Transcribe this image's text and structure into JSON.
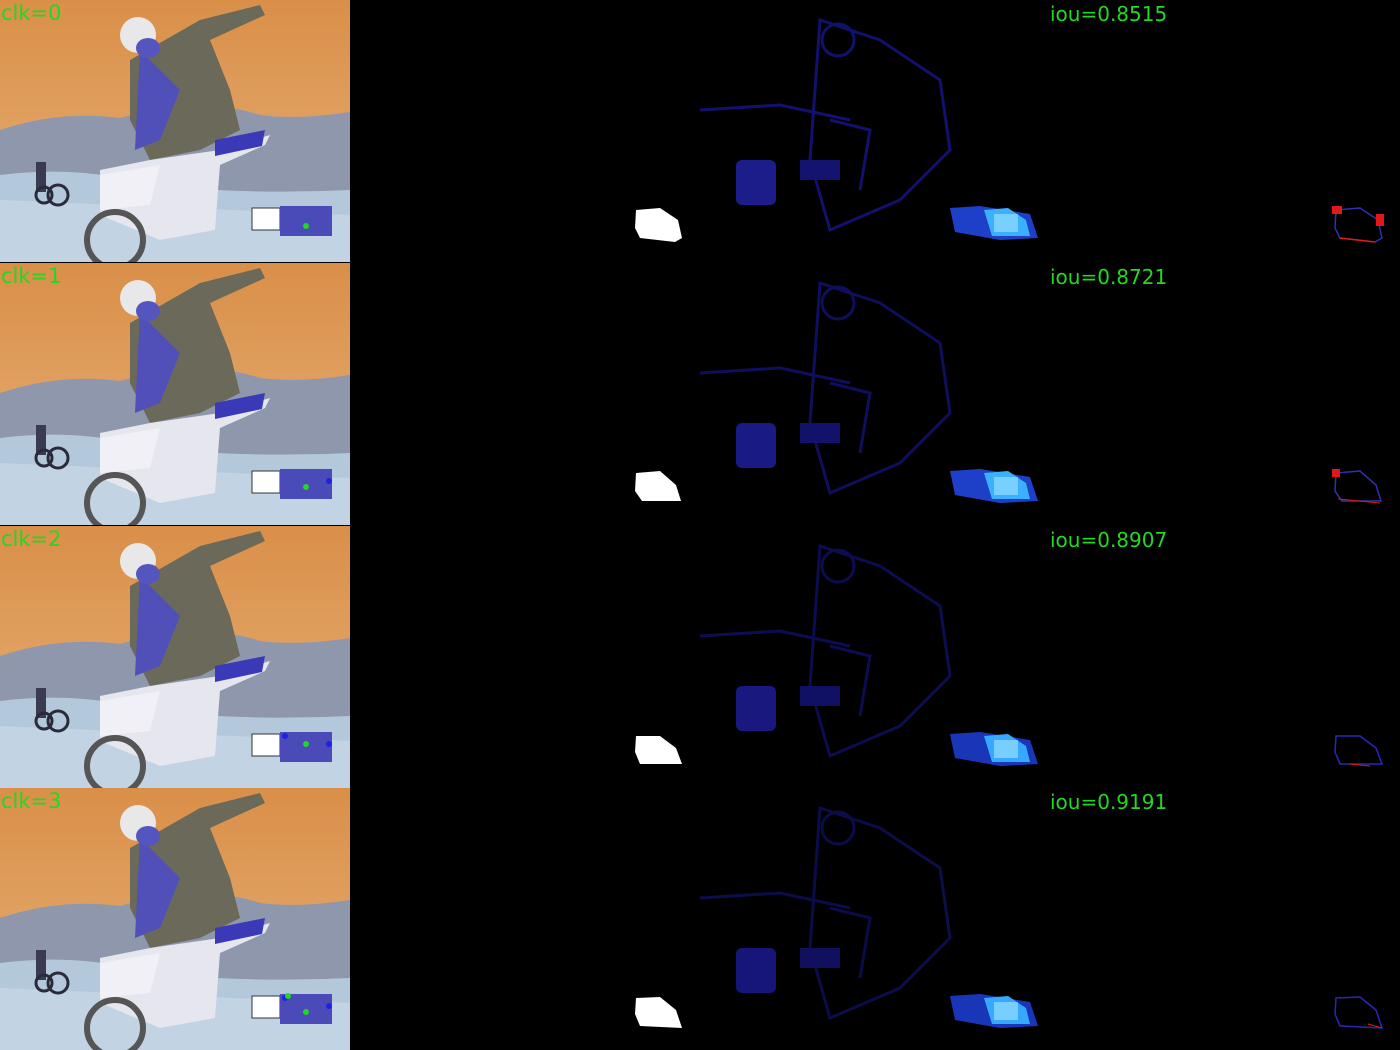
{
  "grid": {
    "columns": [
      "input-photo",
      "predicted-mask",
      "probability-map",
      "error-map"
    ],
    "rows": [
      {
        "clk_label": "clk=0",
        "iou_label": "iou=0.8515",
        "clicks": [
          {
            "type": "positive",
            "color": "#22d822"
          }
        ],
        "error_color": "#e01818"
      },
      {
        "clk_label": "clk=1",
        "iou_label": "iou=0.8721",
        "clicks": [
          {
            "type": "positive",
            "color": "#22d822"
          },
          {
            "type": "negative",
            "color": "#2020e0"
          }
        ],
        "error_color": "#e01818"
      },
      {
        "clk_label": "clk=2",
        "iou_label": "iou=0.8907",
        "clicks": [
          {
            "type": "positive",
            "color": "#22d822"
          },
          {
            "type": "negative",
            "color": "#2020e0"
          },
          {
            "type": "negative",
            "color": "#2020e0"
          }
        ],
        "error_color": "#2020c0"
      },
      {
        "clk_label": "clk=3",
        "iou_label": "iou=0.9191",
        "clicks": [
          {
            "type": "positive",
            "color": "#22d822"
          },
          {
            "type": "negative",
            "color": "#2020e0"
          },
          {
            "type": "negative",
            "color": "#2020e0"
          },
          {
            "type": "positive",
            "color": "#22d822"
          }
        ],
        "error_color": "#2020c0"
      }
    ]
  },
  "colors": {
    "label_green": "#22d822",
    "background": "#000000",
    "sky": "#d99a55",
    "hill": "#8a93a8",
    "ground": "#a8c0d8",
    "mask_white": "#ffffff",
    "prob_blue": "#1a1a9a",
    "prob_bright": "#2aa0ff"
  }
}
